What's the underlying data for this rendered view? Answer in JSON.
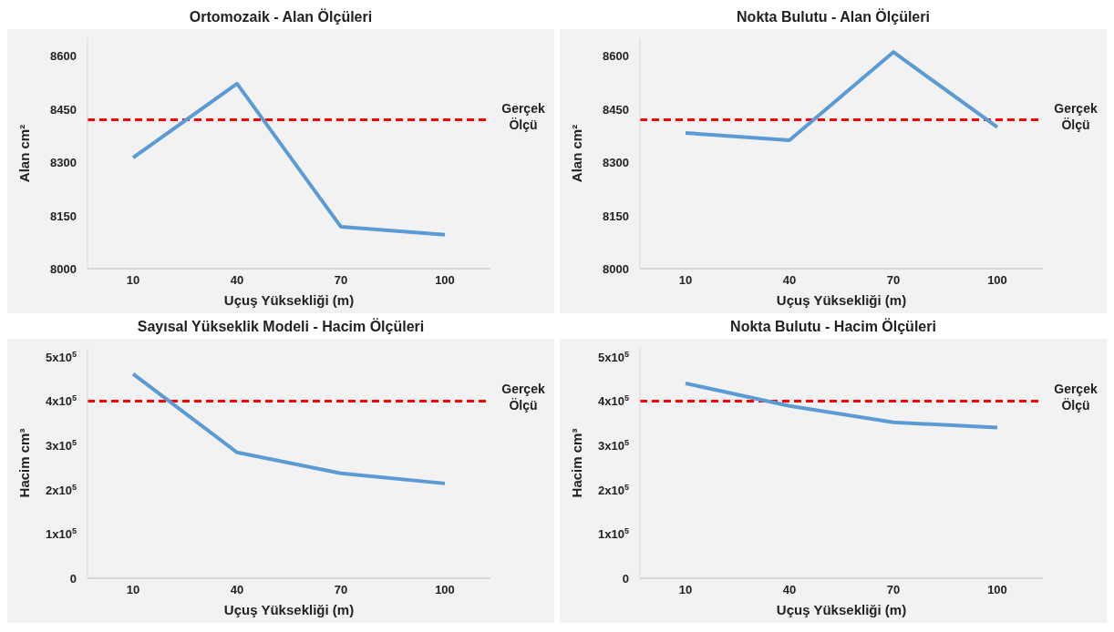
{
  "chart_data": [
    {
      "type": "line",
      "title": "Ortomozaik - Alan Ölçüleri",
      "xlabel": "Uçuş Yüksekliği (m)",
      "ylabel": "Alan cm²",
      "categories": [
        "10",
        "40",
        "70",
        "100"
      ],
      "series": [
        {
          "color": "#5b9bd5",
          "values": [
            8313,
            8522,
            8118,
            8096
          ]
        }
      ],
      "ylim": [
        8000,
        8650
      ],
      "yticks": [
        8000,
        8150,
        8300,
        8450,
        8600
      ],
      "marker": "none",
      "line_style": "solid",
      "grid": false,
      "ref_lines": [
        {
          "axis": "y",
          "value": 8420,
          "label": "Gerçek Ölçü",
          "color": "#ff0000",
          "line_style": "dashed"
        }
      ]
    },
    {
      "type": "line",
      "title": "Nokta Bulutu - Alan Ölçüleri",
      "xlabel": "Uçuş Yüksekliği (m)",
      "ylabel": "Alan cm²",
      "categories": [
        "10",
        "40",
        "70",
        "100"
      ],
      "series": [
        {
          "color": "#5b9bd5",
          "values": [
            8383,
            8362,
            8611,
            8399
          ]
        }
      ],
      "ylim": [
        8000,
        8650
      ],
      "yticks": [
        8000,
        8150,
        8300,
        8450,
        8600
      ],
      "marker": "none",
      "line_style": "solid",
      "grid": false,
      "ref_lines": [
        {
          "axis": "y",
          "value": 8420,
          "label": "Gerçek Ölçü",
          "color": "#ff0000",
          "line_style": "dashed"
        }
      ]
    },
    {
      "type": "line",
      "title": "Sayısal Yükseklik Modeli - Hacim Ölçüleri",
      "xlabel": "Uçuş Yüksekliği (m)",
      "ylabel": "Hacim cm³",
      "categories": [
        "10",
        "40",
        "70",
        "100"
      ],
      "series": [
        {
          "color": "#5b9bd5",
          "values": [
            461000,
            284000,
            237000,
            214000
          ]
        }
      ],
      "ylim": [
        0,
        520000
      ],
      "yticks": [
        0,
        {
          "value": 100000,
          "label": "1x10$^{5}$"
        },
        {
          "value": 200000,
          "label": "2x10$^{5}$"
        },
        {
          "value": 300000,
          "label": "3x10$^{5}$"
        },
        {
          "value": 400000,
          "label": "4x10$^{5}$"
        },
        {
          "value": 500000,
          "label": "5x10$^{5}$"
        }
      ],
      "marker": "none",
      "line_style": "solid",
      "grid": false,
      "ref_lines": [
        {
          "axis": "y",
          "value": 400000,
          "label": "Gerçek Ölçü",
          "color": "#ff0000",
          "line_style": "dashed"
        }
      ]
    },
    {
      "type": "line",
      "title": "Nokta Bulutu - Hacim Ölçüleri",
      "xlabel": "Uçuş Yüksekliği (m)",
      "ylabel": "Hacim cm³",
      "categories": [
        "10",
        "40",
        "70",
        "100"
      ],
      "series": [
        {
          "color": "#5b9bd5",
          "values": [
            440000,
            389000,
            352000,
            340000
          ]
        }
      ],
      "ylim": [
        0,
        520000
      ],
      "yticks": [
        0,
        {
          "value": 100000,
          "label": "1x10$^{5}$"
        },
        {
          "value": 200000,
          "label": "2x10$^{5}$"
        },
        {
          "value": 300000,
          "label": "3x10$^{5}$"
        },
        {
          "value": 400000,
          "label": "4x10$^{5}$"
        },
        {
          "value": 500000,
          "label": "5x10$^{5}$"
        }
      ],
      "marker": "none",
      "line_style": "solid",
      "grid": false,
      "ref_lines": [
        {
          "axis": "y",
          "value": 400000,
          "label": "Gerçek Ölçü",
          "color": "#ff0000",
          "line_style": "dashed"
        }
      ]
    }
  ]
}
